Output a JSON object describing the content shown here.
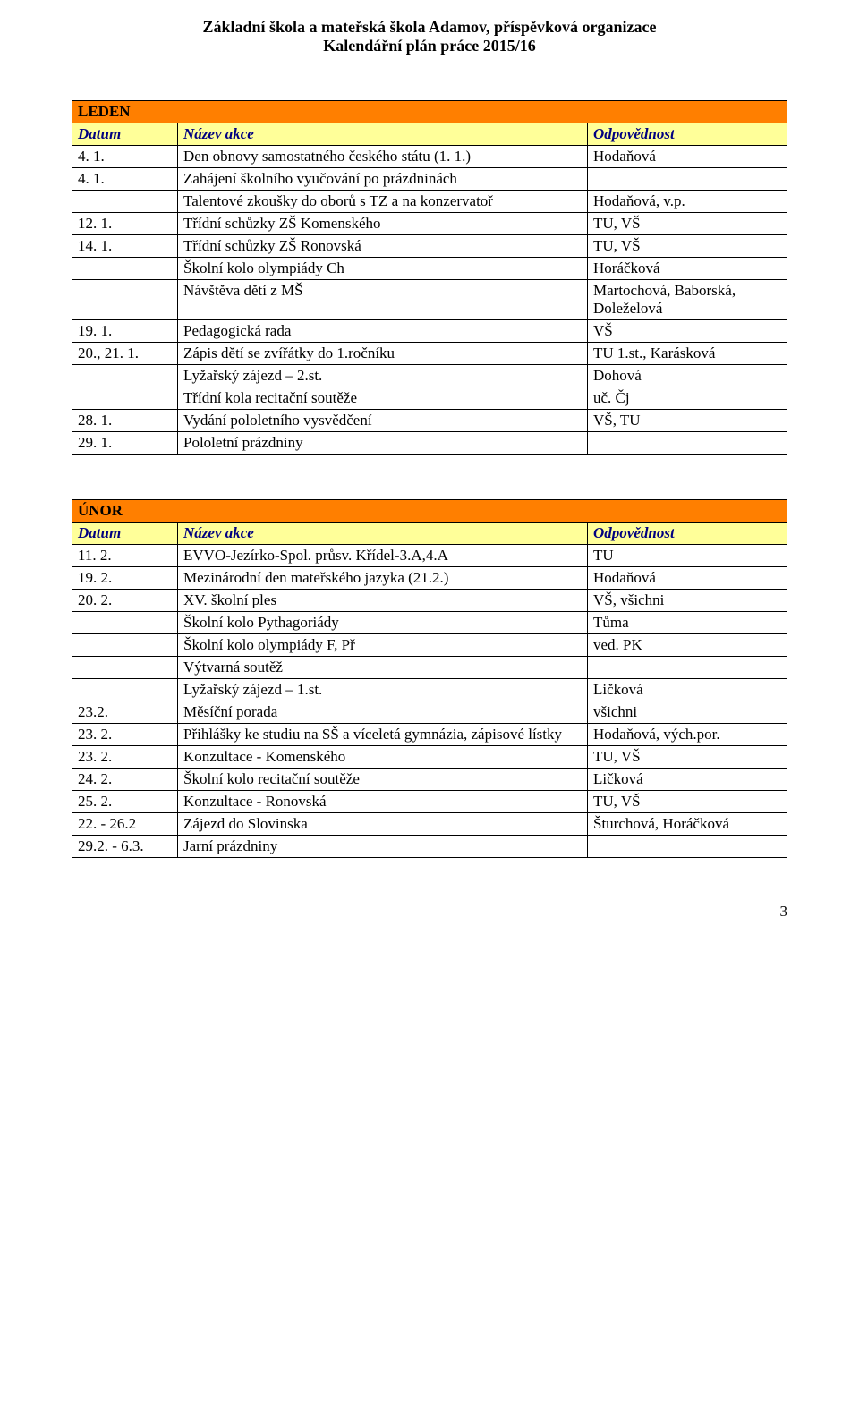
{
  "header": {
    "line1": "Základní škola a mateřská škola Adamov, příspěvková organizace",
    "line2": "Kalendářní plán práce 2015/16"
  },
  "colors": {
    "title_bg": "#ff7f00",
    "head_bg": "#ffff99",
    "head_text": "#000080",
    "border": "#000000",
    "page_bg": "#ffffff"
  },
  "fonts": {
    "body_family": "Times New Roman",
    "title_size_pt": 22,
    "head_size_pt": 13,
    "cell_size_pt": 12
  },
  "columns": {
    "date": "Datum",
    "name": "Název akce",
    "resp": "Odpovědnost"
  },
  "tables": [
    {
      "title": "LEDEN",
      "rows": [
        {
          "date": "4. 1.",
          "name": "Den obnovy samostatného českého státu (1. 1.)",
          "resp": "Hodaňová"
        },
        {
          "date": "4. 1.",
          "name": "Zahájení školního vyučování po prázdninách",
          "resp": ""
        },
        {
          "date": "",
          "name": "Talentové zkoušky do oborů s TZ a na konzervatoř",
          "resp": "Hodaňová, v.p."
        },
        {
          "date": "12. 1.",
          "name": "Třídní schůzky ZŠ Komenského",
          "resp": "TU, VŠ"
        },
        {
          "date": "14. 1.",
          "name": "Třídní schůzky ZŠ Ronovská",
          "resp": "TU, VŠ"
        },
        {
          "date": "",
          "name": "Školní kolo olympiády Ch",
          "resp": "Horáčková"
        },
        {
          "date": "",
          "name": "Návštěva dětí z MŠ",
          "resp": "Martochová, Baborská, Doleželová"
        },
        {
          "date": "19. 1.",
          "name": "Pedagogická rada",
          "resp": "VŠ"
        },
        {
          "date": "20., 21. 1.",
          "name": "Zápis dětí se zvířátky do 1.ročníku",
          "resp": "TU 1.st., Karásková"
        },
        {
          "date": "",
          "name": "Lyžařský zájezd – 2.st.",
          "resp": "Dohová"
        },
        {
          "date": "",
          "name": "Třídní kola recitační soutěže",
          "resp": "uč. Čj"
        },
        {
          "date": "28. 1.",
          "name": "Vydání pololetního vysvědčení",
          "resp": "VŠ, TU"
        },
        {
          "date": "29. 1.",
          "name": "Pololetní prázdniny",
          "resp": ""
        }
      ]
    },
    {
      "title": "ÚNOR",
      "rows": [
        {
          "date": "11. 2.",
          "name": "EVVO-Jezírko-Spol. průsv. Křídel-3.A,4.A",
          "resp": "TU"
        },
        {
          "date": "19. 2.",
          "name": "Mezinárodní den mateřského jazyka (21.2.)",
          "resp": "Hodaňová"
        },
        {
          "date": "20. 2.",
          "name": "XV. školní ples",
          "resp": "VŠ, všichni"
        },
        {
          "date": "",
          "name": "Školní kolo Pythagoriády",
          "resp": "Tůma"
        },
        {
          "date": "",
          "name": "Školní kolo olympiády   F, Př",
          "resp": "ved. PK"
        },
        {
          "date": "",
          "name": "Výtvarná soutěž",
          "resp": ""
        },
        {
          "date": "",
          "name": "Lyžařský zájezd – 1.st.",
          "resp": "Ličková"
        },
        {
          "date": "23.2.",
          "name": "Měsíční porada",
          "resp": "všichni"
        },
        {
          "date": "23. 2.",
          "name": "Přihlášky ke studiu na SŠ a víceletá gymnázia, zápisové lístky",
          "resp": "Hodaňová, vých.por."
        },
        {
          "date": "23. 2.",
          "name": "Konzultace - Komenského",
          "resp": "TU, VŠ"
        },
        {
          "date": "24. 2.",
          "name": "Školní kolo recitační soutěže",
          "resp": "Ličková"
        },
        {
          "date": "25. 2.",
          "name": "Konzultace - Ronovská",
          "resp": "TU, VŠ"
        },
        {
          "date": "22. - 26.2",
          "name": "Zájezd do Slovinska",
          "resp": "Šturchová, Horáčková"
        },
        {
          "date": "29.2. - 6.3.",
          "name": "Jarní prázdniny",
          "resp": ""
        }
      ]
    }
  ],
  "page_number": "3"
}
